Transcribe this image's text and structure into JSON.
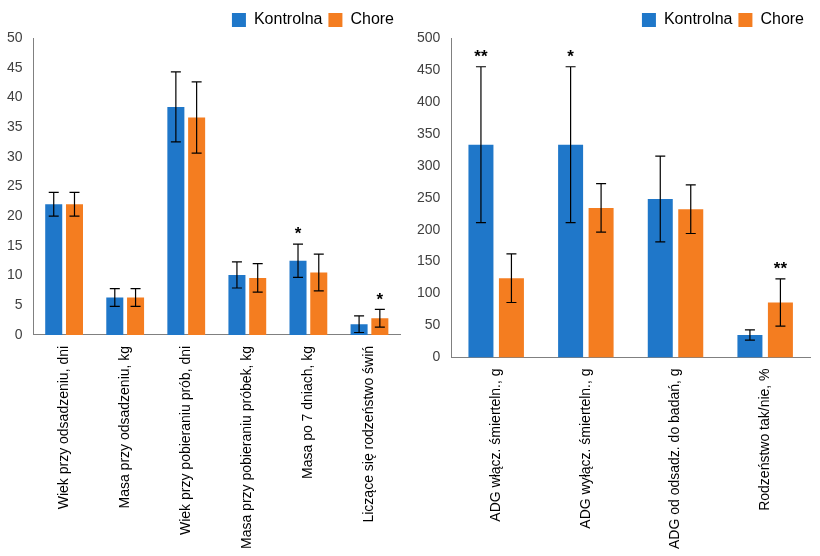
{
  "chart_data": [
    {
      "type": "bar",
      "categories": [
        "Wiek przy odsadzeniu, dni",
        "Masa przy odsadzeniu, kg",
        "Wiek przy pobieraniu prób, dni",
        "Masa przy pobieraniu próbek, kg",
        "Masa po 7 dniach, kg",
        "Liczące się rodzeństwo świń"
      ],
      "series": [
        {
          "name": "Kontrolna",
          "color": "#1f77c9",
          "values": [
            22,
            6.3,
            38.4,
            10.1,
            12.5,
            1.8
          ],
          "errors": [
            2,
            1.5,
            5.9,
            2.2,
            2.8,
            1.4
          ]
        },
        {
          "name": "Chore",
          "color": "#f47d20",
          "values": [
            22,
            6.3,
            36.6,
            9.6,
            10.5,
            2.8
          ],
          "errors": [
            2,
            1.5,
            6,
            2.4,
            3.1,
            1.5
          ]
        }
      ],
      "ylim": [
        0,
        50
      ],
      "yticks": [
        0,
        5,
        10,
        15,
        20,
        25,
        30,
        35,
        40,
        45,
        50
      ],
      "grid": false,
      "legend": "upper right",
      "annotations": [
        {
          "category": "Masa po 7 dniach, kg",
          "text": "*"
        },
        {
          "category": "Liczące się rodzeństwo świń",
          "text": "*"
        }
      ]
    },
    {
      "type": "bar",
      "categories": [
        "ADG włącz. śmierteln., g",
        "ADG wyłącz. śmierteln., g",
        "ADG od odsadz. do badań, g",
        "Rodzeństwo tak/nie, %"
      ],
      "series": [
        {
          "name": "Kontrolna",
          "color": "#1f77c9",
          "values": [
            333,
            333,
            248,
            35
          ],
          "errors": [
            122,
            122,
            67,
            8
          ]
        },
        {
          "name": "Chore",
          "color": "#f47d20",
          "values": [
            124,
            234,
            232,
            86
          ],
          "errors": [
            38,
            38,
            38,
            37
          ]
        }
      ],
      "ylim": [
        0,
        500
      ],
      "yticks": [
        0,
        50,
        100,
        150,
        200,
        250,
        300,
        350,
        400,
        450,
        500
      ],
      "grid": false,
      "legend": "upper right",
      "annotations": [
        {
          "category": "ADG włącz. śmierteln., g",
          "text": "**"
        },
        {
          "category": "ADG wyłącz. śmierteln., g",
          "text": "*"
        },
        {
          "category": "Rodzeństwo tak/nie, %",
          "text": "**"
        }
      ]
    }
  ]
}
